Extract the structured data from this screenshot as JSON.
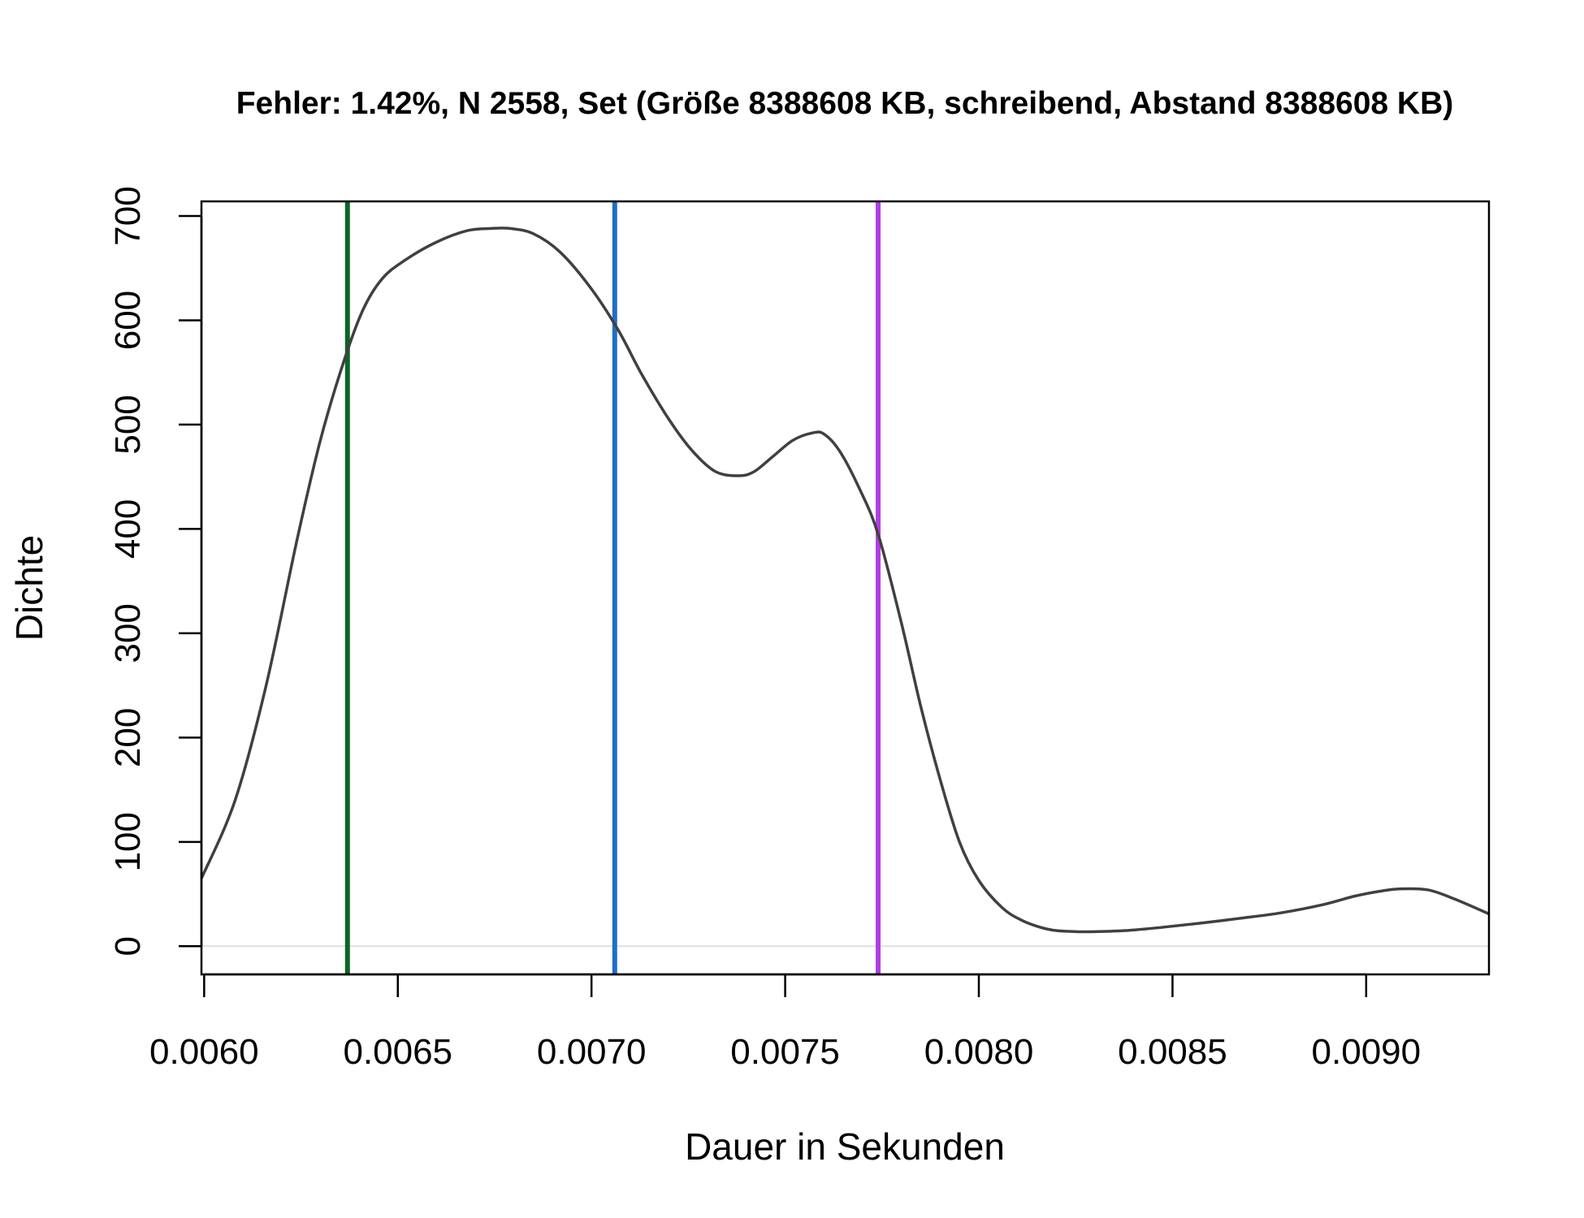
{
  "chart_data": {
    "type": "line",
    "title": "Fehler: 1.42%, N 2558, Set (Größe 8388608 KB, schreibend, Abstand 8388608 KB)",
    "xlabel": "Dauer in Sekunden",
    "ylabel": "Dichte",
    "xlim": [
      0.005993,
      0.009317
    ],
    "ylim": [
      -27,
      714
    ],
    "x_ticks": [
      0.006,
      0.0065,
      0.007,
      0.0075,
      0.008,
      0.0085,
      0.009
    ],
    "x_tick_labels": [
      "0.0060",
      "0.0065",
      "0.0070",
      "0.0075",
      "0.0080",
      "0.0085",
      "0.0090"
    ],
    "y_ticks": [
      0,
      100,
      200,
      300,
      400,
      500,
      600,
      700
    ],
    "y_tick_labels": [
      "0",
      "100",
      "200",
      "300",
      "400",
      "500",
      "600",
      "700"
    ],
    "grid": false,
    "legend": "none",
    "series": [
      {
        "color": "#404040",
        "x": [
          0.005993,
          0.00608,
          0.00616,
          0.00624,
          0.0063,
          0.00636,
          0.00641,
          0.00646,
          0.00652,
          0.0066,
          0.00668,
          0.00674,
          0.00679,
          0.00685,
          0.00692,
          0.007,
          0.00707,
          0.00713,
          0.0072,
          0.00726,
          0.00732,
          0.00738,
          0.00742,
          0.00747,
          0.00752,
          0.00757,
          0.0076,
          0.00764,
          0.00769,
          0.00774,
          0.0078,
          0.00785,
          0.0079,
          0.00795,
          0.008,
          0.00806,
          0.00811,
          0.00816,
          0.0082,
          0.00825,
          0.0083,
          0.00838,
          0.00847,
          0.00857,
          0.00868,
          0.00878,
          0.00889,
          0.00897,
          0.00904,
          0.00909,
          0.00916,
          0.00923,
          0.009317
        ],
        "y": [
          65,
          140,
          250,
          390,
          485,
          560,
          610,
          640,
          658,
          675,
          686,
          688,
          688,
          683,
          665,
          630,
          590,
          548,
          505,
          475,
          455,
          451,
          455,
          470,
          485,
          492,
          491,
          475,
          440,
          395,
          310,
          230,
          160,
          100,
          63,
          37,
          25,
          18,
          15,
          14,
          14,
          15,
          18,
          22,
          27,
          32,
          40,
          48,
          53,
          55,
          54,
          45,
          31
        ]
      }
    ],
    "vlines": [
      {
        "x": 0.00637,
        "color": "#0b6623"
      },
      {
        "x": 0.00706,
        "color": "#1f6fc5"
      },
      {
        "x": 0.00774,
        "color": "#b23ee0"
      }
    ]
  }
}
